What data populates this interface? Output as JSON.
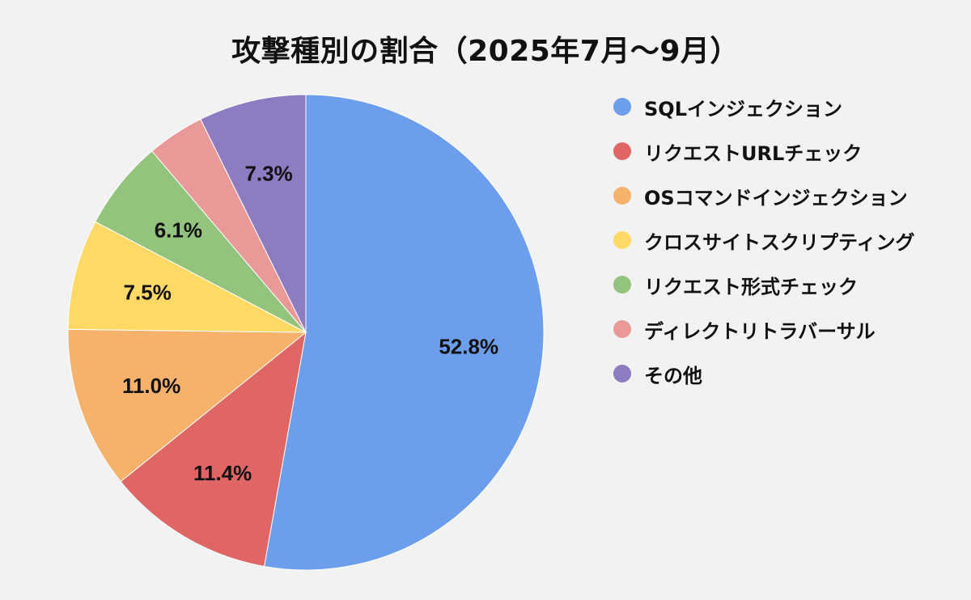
{
  "chart_data": {
    "type": "pie",
    "title": "攻撃種別の割合（2025年7月～9月）",
    "unit": "%",
    "slices": [
      {
        "label": "SQLインジェクション",
        "value": 52.8,
        "display": "52.8%",
        "color": "#6d9eeb"
      },
      {
        "label": "リクエストURLチェック",
        "value": 11.4,
        "display": "11.4%",
        "color": "#e06666"
      },
      {
        "label": "OSコマンドインジェクション",
        "value": 11.0,
        "display": "11.0%",
        "color": "#f6b26b"
      },
      {
        "label": "クロスサイトスクリプティング",
        "value": 7.5,
        "display": "7.5%",
        "color": "#ffd966"
      },
      {
        "label": "リクエスト形式チェック",
        "value": 6.1,
        "display": "6.1%",
        "color": "#93c47d"
      },
      {
        "label": "ディレクトリトラバーサル",
        "value": 3.9,
        "display": "",
        "color": "#ea9999"
      },
      {
        "label": "その他",
        "value": 7.3,
        "display": "7.3%",
        "color": "#8e7cc3"
      }
    ],
    "start_angle": "12 o'clock",
    "direction": "clockwise",
    "legend_position": "right"
  }
}
